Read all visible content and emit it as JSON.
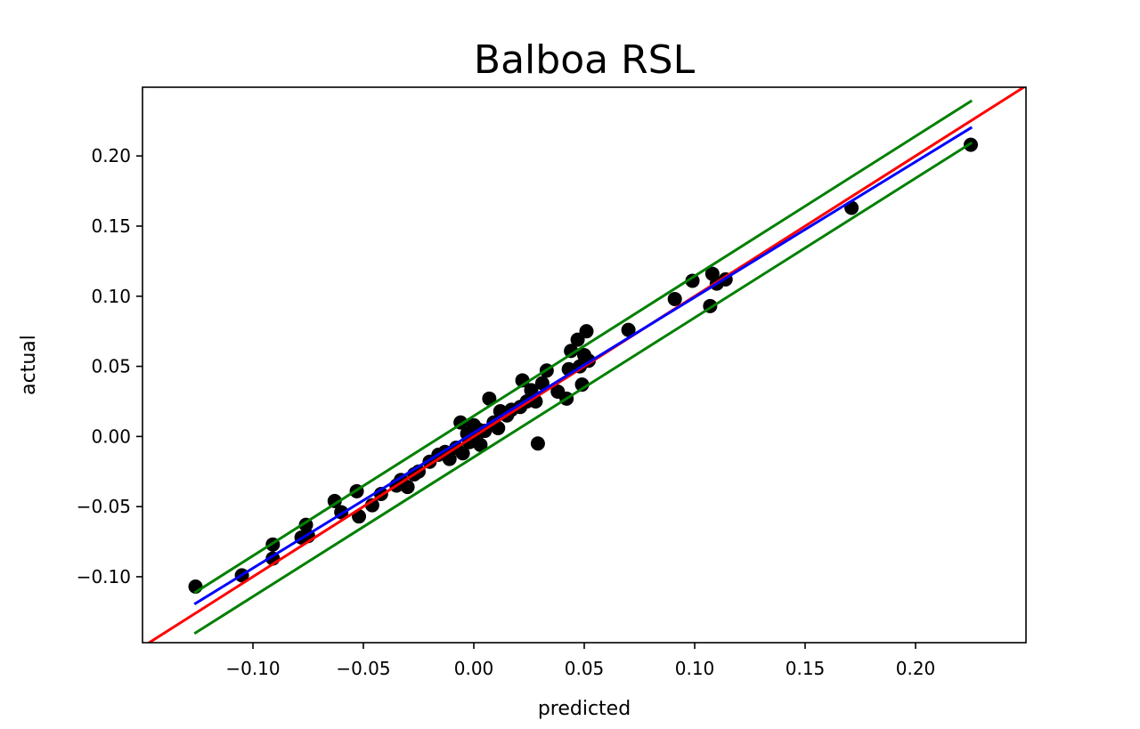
{
  "chart_data": {
    "type": "scatter",
    "title": "Balboa RSL",
    "xlabel": "predicted",
    "ylabel": "actual",
    "xlim": [
      -0.15,
      0.25
    ],
    "ylim": [
      -0.147,
      0.249
    ],
    "xticks": [
      {
        "value": -0.1,
        "label": "−0.10"
      },
      {
        "value": -0.05,
        "label": "−0.05"
      },
      {
        "value": 0.0,
        "label": "0.00"
      },
      {
        "value": 0.05,
        "label": "0.05"
      },
      {
        "value": 0.1,
        "label": "0.10"
      },
      {
        "value": 0.15,
        "label": "0.15"
      },
      {
        "value": 0.2,
        "label": "0.20"
      }
    ],
    "yticks": [
      {
        "value": -0.1,
        "label": "−0.10"
      },
      {
        "value": -0.05,
        "label": "−0.05"
      },
      {
        "value": 0.0,
        "label": "0.00"
      },
      {
        "value": 0.05,
        "label": "0.05"
      },
      {
        "value": 0.1,
        "label": "0.10"
      },
      {
        "value": 0.15,
        "label": "0.15"
      },
      {
        "value": 0.2,
        "label": "0.20"
      }
    ],
    "grid": false,
    "points": [
      {
        "x": -0.126,
        "y": -0.107
      },
      {
        "x": -0.105,
        "y": -0.099
      },
      {
        "x": -0.091,
        "y": -0.087
      },
      {
        "x": -0.091,
        "y": -0.077
      },
      {
        "x": -0.078,
        "y": -0.072
      },
      {
        "x": -0.076,
        "y": -0.063
      },
      {
        "x": -0.075,
        "y": -0.071
      },
      {
        "x": -0.063,
        "y": -0.046
      },
      {
        "x": -0.06,
        "y": -0.054
      },
      {
        "x": -0.053,
        "y": -0.039
      },
      {
        "x": -0.052,
        "y": -0.057
      },
      {
        "x": -0.046,
        "y": -0.049
      },
      {
        "x": -0.042,
        "y": -0.041
      },
      {
        "x": -0.035,
        "y": -0.035
      },
      {
        "x": -0.033,
        "y": -0.031
      },
      {
        "x": -0.03,
        "y": -0.036
      },
      {
        "x": -0.027,
        "y": -0.027
      },
      {
        "x": -0.025,
        "y": -0.025
      },
      {
        "x": -0.02,
        "y": -0.018
      },
      {
        "x": -0.016,
        "y": -0.013
      },
      {
        "x": -0.013,
        "y": -0.011
      },
      {
        "x": -0.011,
        "y": -0.016
      },
      {
        "x": -0.008,
        "y": -0.008
      },
      {
        "x": -0.006,
        "y": 0.01
      },
      {
        "x": -0.005,
        "y": -0.012
      },
      {
        "x": -0.003,
        "y": 0.002
      },
      {
        "x": -0.002,
        "y": -0.004
      },
      {
        "x": 0.0,
        "y": 0.008
      },
      {
        "x": 0.001,
        "y": -0.002
      },
      {
        "x": 0.002,
        "y": 0.005
      },
      {
        "x": 0.003,
        "y": -0.006
      },
      {
        "x": 0.005,
        "y": 0.004
      },
      {
        "x": 0.007,
        "y": 0.027
      },
      {
        "x": 0.009,
        "y": 0.01
      },
      {
        "x": 0.011,
        "y": 0.006
      },
      {
        "x": 0.012,
        "y": 0.018
      },
      {
        "x": 0.015,
        "y": 0.015
      },
      {
        "x": 0.017,
        "y": 0.019
      },
      {
        "x": 0.021,
        "y": 0.021
      },
      {
        "x": 0.022,
        "y": 0.04
      },
      {
        "x": 0.024,
        "y": 0.025
      },
      {
        "x": 0.026,
        "y": 0.033
      },
      {
        "x": 0.028,
        "y": 0.025
      },
      {
        "x": 0.029,
        "y": -0.005
      },
      {
        "x": 0.031,
        "y": 0.038
      },
      {
        "x": 0.033,
        "y": 0.047
      },
      {
        "x": 0.038,
        "y": 0.032
      },
      {
        "x": 0.042,
        "y": 0.027
      },
      {
        "x": 0.043,
        "y": 0.048
      },
      {
        "x": 0.044,
        "y": 0.061
      },
      {
        "x": 0.047,
        "y": 0.069
      },
      {
        "x": 0.048,
        "y": 0.05
      },
      {
        "x": 0.049,
        "y": 0.037
      },
      {
        "x": 0.05,
        "y": 0.058
      },
      {
        "x": 0.051,
        "y": 0.075
      },
      {
        "x": 0.052,
        "y": 0.054
      },
      {
        "x": 0.07,
        "y": 0.076
      },
      {
        "x": 0.091,
        "y": 0.098
      },
      {
        "x": 0.099,
        "y": 0.111
      },
      {
        "x": 0.107,
        "y": 0.093
      },
      {
        "x": 0.108,
        "y": 0.116
      },
      {
        "x": 0.11,
        "y": 0.109
      },
      {
        "x": 0.114,
        "y": 0.112
      },
      {
        "x": 0.171,
        "y": 0.163
      },
      {
        "x": 0.225,
        "y": 0.208
      }
    ],
    "lines": [
      {
        "role": "identity",
        "color": "#ff0000",
        "x": [
          -0.15,
          0.25
        ],
        "y": [
          -0.15,
          0.25
        ]
      },
      {
        "role": "fit",
        "color": "#0000ff",
        "x": [
          -0.126,
          0.225
        ],
        "y": [
          -0.119,
          0.22
        ]
      },
      {
        "role": "upper-band",
        "color": "#008000",
        "x": [
          -0.126,
          0.225
        ],
        "y": [
          -0.111,
          0.239
        ]
      },
      {
        "role": "lower-band",
        "color": "#008000",
        "x": [
          -0.126,
          0.225
        ],
        "y": [
          -0.14,
          0.209
        ]
      }
    ],
    "colors": {
      "points": "#000000",
      "frame": "#000000"
    }
  }
}
